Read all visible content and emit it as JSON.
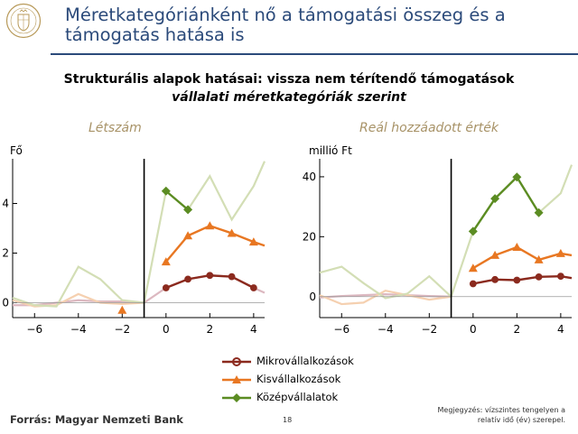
{
  "header": {
    "title_line1": "Méretkategóriánként nő a támogatási összeg és a",
    "title_line2": "támogatás hatása is",
    "subtitle": "Strukturális alapok hatásai: vissza nem térítendő támogatások",
    "subtitle2": "vállalati méretkategóriák szerint"
  },
  "footer": {
    "source": "Forrás: Magyar Nemzeti Bank",
    "page_number": "18",
    "note_line1": "Megjegyzés: vízszintes tengelyen a",
    "note_line2": "relatív idő (év) szerepel."
  },
  "legend": {
    "items": [
      {
        "label": "Mikrovállalkozások",
        "color": "#8b2a1e",
        "marker": "circle"
      },
      {
        "label": "Kisvállalkozások",
        "color": "#e87722",
        "marker": "triangle"
      },
      {
        "label": "Középvállalatok",
        "color": "#5b8c22",
        "marker": "diamond"
      }
    ]
  },
  "chart_data": [
    {
      "type": "line",
      "title": "Létszám",
      "ylabel": "Fő",
      "xlim": [
        -7,
        4.5
      ],
      "ylim": [
        -0.6,
        5.8
      ],
      "xticks": [
        -6,
        -4,
        -2,
        0,
        2,
        4
      ],
      "xtick_labels": [
        "−6",
        "−4",
        "−2",
        "0",
        "2",
        "4"
      ],
      "yticks": [
        0,
        2,
        4
      ],
      "ytick_labels": [
        "0",
        "2",
        "4"
      ],
      "event_line_x": -1,
      "series": [
        {
          "name": "Mikrovállalkozások",
          "color": "#8b2a1e",
          "marker": "circle",
          "x": [
            0,
            1,
            2,
            3,
            4
          ],
          "values": [
            0.6,
            0.95,
            1.1,
            1.05,
            0.6
          ],
          "faded": {
            "color": "#dcb8c0",
            "x": [
              -7,
              -6,
              -5,
              -4,
              -3,
              -2,
              -1,
              0,
              1,
              2,
              3,
              4,
              4.5
            ],
            "values": [
              -0.1,
              -0.1,
              0.0,
              0.1,
              0.05,
              0.05,
              0.0,
              0.6,
              0.95,
              1.1,
              1.05,
              0.6,
              0.4
            ]
          }
        },
        {
          "name": "Kisvállalkozások",
          "color": "#e87722",
          "marker": "triangle",
          "x": [
            -2,
            0,
            1,
            2,
            3,
            4
          ],
          "values": [
            -0.3,
            1.65,
            2.7,
            3.1,
            2.8,
            2.45
          ],
          "marker_x": [
            -2,
            0,
            1,
            2,
            3,
            4
          ],
          "faded": {
            "color": "#f5d0b0",
            "x": [
              -7,
              -6,
              -5,
              -4,
              -3,
              -2,
              -1
            ],
            "values": [
              0.1,
              -0.15,
              -0.1,
              0.35,
              0.0,
              -0.05,
              0.0
            ]
          },
          "tail": {
            "x": [
              4,
              4.5
            ],
            "values": [
              2.45,
              2.3
            ]
          }
        },
        {
          "name": "Középvállalatok",
          "color": "#5b8c22",
          "marker": "diamond",
          "x": [
            0,
            1
          ],
          "values": [
            4.5,
            3.75
          ],
          "faded": {
            "color": "#d3deb5",
            "x": [
              -7,
              -6,
              -5,
              -4,
              -3,
              -2,
              -1,
              0,
              1,
              2,
              3,
              4,
              4.5
            ],
            "values": [
              0.2,
              -0.1,
              -0.15,
              1.45,
              0.95,
              0.1,
              0.0,
              4.5,
              3.75,
              5.1,
              3.35,
              4.7,
              5.7
            ]
          }
        }
      ]
    },
    {
      "type": "line",
      "title": "Reál hozzáadott érték",
      "ylabel": "millió Ft",
      "xlim": [
        -7,
        4.5
      ],
      "ylim": [
        -7,
        46
      ],
      "xticks": [
        -6,
        -4,
        -2,
        0,
        2,
        4
      ],
      "xtick_labels": [
        "−6",
        "−4",
        "−2",
        "0",
        "2",
        "4"
      ],
      "yticks": [
        0,
        20,
        40
      ],
      "ytick_labels": [
        "0",
        "20",
        "40"
      ],
      "event_line_x": -1,
      "series": [
        {
          "name": "Mikrovállalkozások",
          "color": "#8b2a1e",
          "marker": "circle",
          "x": [
            0,
            1,
            2,
            3,
            4
          ],
          "values": [
            4.3,
            5.7,
            5.5,
            6.6,
            6.8
          ],
          "faded": {
            "color": "#dcb8c0",
            "x": [
              -7,
              -6,
              -5,
              -4,
              -3,
              -2,
              -1
            ],
            "values": [
              -0.3,
              0.2,
              0.5,
              0.8,
              0.5,
              0.2,
              0.0
            ]
          },
          "tail": {
            "x": [
              4,
              4.5
            ],
            "values": [
              6.8,
              6.2
            ]
          }
        },
        {
          "name": "Kisvállalkozások",
          "color": "#e87722",
          "marker": "triangle",
          "x": [
            0,
            1,
            2,
            3,
            4
          ],
          "values": [
            9.5,
            13.8,
            16.5,
            12.3,
            14.4
          ],
          "faded": {
            "color": "#f5d0b0",
            "x": [
              -7,
              -6,
              -5,
              -4,
              -3,
              -2,
              -1
            ],
            "values": [
              0.5,
              -2.5,
              -2.0,
              2.0,
              0.5,
              -1.0,
              0.0
            ]
          },
          "tail": {
            "x": [
              4,
              4.5
            ],
            "values": [
              14.4,
              13.8
            ]
          }
        },
        {
          "name": "Középvállalatok",
          "color": "#5b8c22",
          "marker": "diamond",
          "x": [
            0,
            1,
            2,
            3
          ],
          "values": [
            21.8,
            32.7,
            39.9,
            28.0
          ],
          "faded": {
            "color": "#d3deb5",
            "x": [
              -7,
              -6,
              -5,
              -4,
              -3,
              -2,
              -1,
              0,
              1,
              2,
              3,
              4,
              4.5
            ],
            "values": [
              8.0,
              10.0,
              4.5,
              -0.5,
              1.0,
              6.8,
              0.0,
              21.8,
              32.7,
              39.9,
              28.0,
              34.5,
              44.0
            ]
          }
        }
      ]
    }
  ]
}
